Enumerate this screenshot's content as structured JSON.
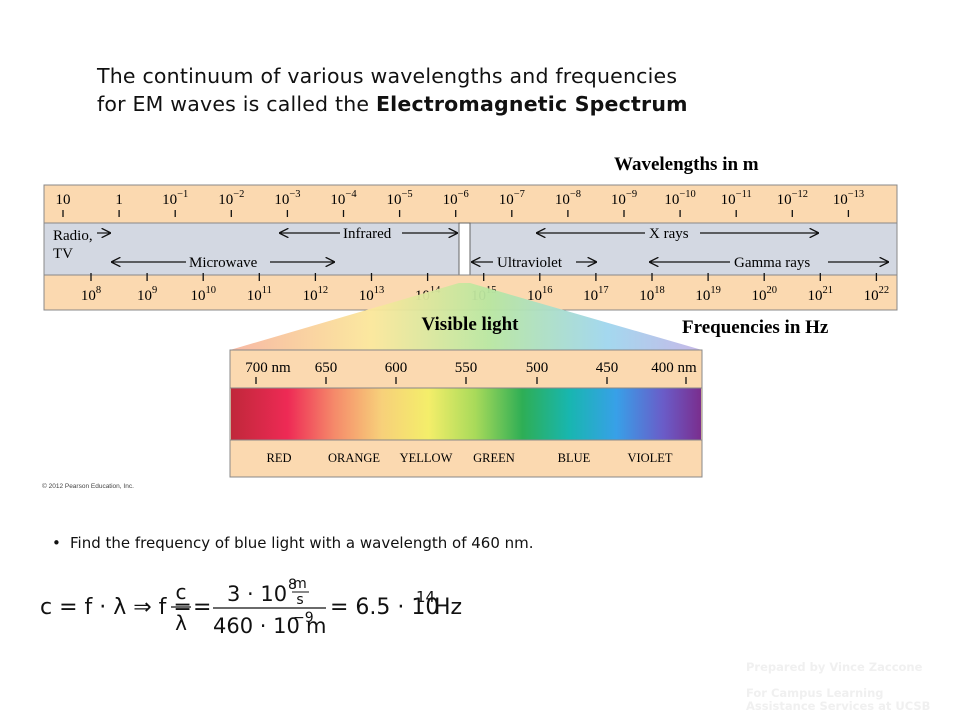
{
  "title": {
    "line1": "The continuum of various wavelengths and frequencies",
    "line2_prefix": "for EM waves is called the ",
    "line2_bold": "Electromagnetic Spectrum"
  },
  "spectrum": {
    "wavelength_heading": "Wavelengths in m",
    "frequency_heading": "Frequencies in Hz",
    "wavelengths": [
      {
        "base": "10",
        "exp": ""
      },
      {
        "base": "1",
        "exp": ""
      },
      {
        "base": "10",
        "exp": "−1"
      },
      {
        "base": "10",
        "exp": "−2"
      },
      {
        "base": "10",
        "exp": "−3"
      },
      {
        "base": "10",
        "exp": "−4"
      },
      {
        "base": "10",
        "exp": "−5"
      },
      {
        "base": "10",
        "exp": "−6"
      },
      {
        "base": "10",
        "exp": "−7"
      },
      {
        "base": "10",
        "exp": "−8"
      },
      {
        "base": "10",
        "exp": "−9"
      },
      {
        "base": "10",
        "exp": "−10"
      },
      {
        "base": "10",
        "exp": "−11"
      },
      {
        "base": "10",
        "exp": "−12"
      },
      {
        "base": "10",
        "exp": "−13"
      }
    ],
    "frequencies": [
      {
        "base": "10",
        "exp": "8"
      },
      {
        "base": "10",
        "exp": "9"
      },
      {
        "base": "10",
        "exp": "10"
      },
      {
        "base": "10",
        "exp": "11"
      },
      {
        "base": "10",
        "exp": "12"
      },
      {
        "base": "10",
        "exp": "13"
      },
      {
        "base": "10",
        "exp": "14"
      },
      {
        "base": "10",
        "exp": "15"
      },
      {
        "base": "10",
        "exp": "16"
      },
      {
        "base": "10",
        "exp": "17"
      },
      {
        "base": "10",
        "exp": "18"
      },
      {
        "base": "10",
        "exp": "19"
      },
      {
        "base": "10",
        "exp": "20"
      },
      {
        "base": "10",
        "exp": "21"
      },
      {
        "base": "10",
        "exp": "22"
      }
    ],
    "bands": {
      "radio_line1": "Radio,",
      "radio_line2": "TV",
      "infrared": "Infrared",
      "xrays": "X rays",
      "microwave": "Microwave",
      "ultraviolet": "Ultraviolet",
      "gamma": "Gamma rays"
    },
    "visible_heading": "Visible light",
    "visible_wavelengths": [
      "700 nm",
      "650",
      "600",
      "550",
      "500",
      "450",
      "400 nm"
    ],
    "colors": [
      "RED",
      "ORANGE",
      "YELLOW",
      "GREEN",
      "BLUE",
      "VIOLET"
    ],
    "copyright": "© 2012 Pearson Education, Inc."
  },
  "bullet": "Find the frequency of blue light with a wavelength of 460 nm.",
  "equation": {
    "lhs": "c = f · λ ⇒ f =",
    "c": "c",
    "lambda": "λ",
    "eq": "=",
    "num": "3 · 10",
    "num_exp": "8",
    "unit_m": "m",
    "unit_s": "s",
    "den": "460 · 10",
    "den_exp": "−9",
    "den_unit": "m",
    "result": "= 6.5 · 10",
    "result_exp": "14",
    "result_unit": "Hz"
  },
  "footer": {
    "line1": "Prepared by Vince Zaccone",
    "line2": "For Campus Learning",
    "line3": "Assistance Services at UCSB"
  },
  "palette": {
    "tan": "#fbd9b0",
    "grey": "#d3d8e2"
  }
}
